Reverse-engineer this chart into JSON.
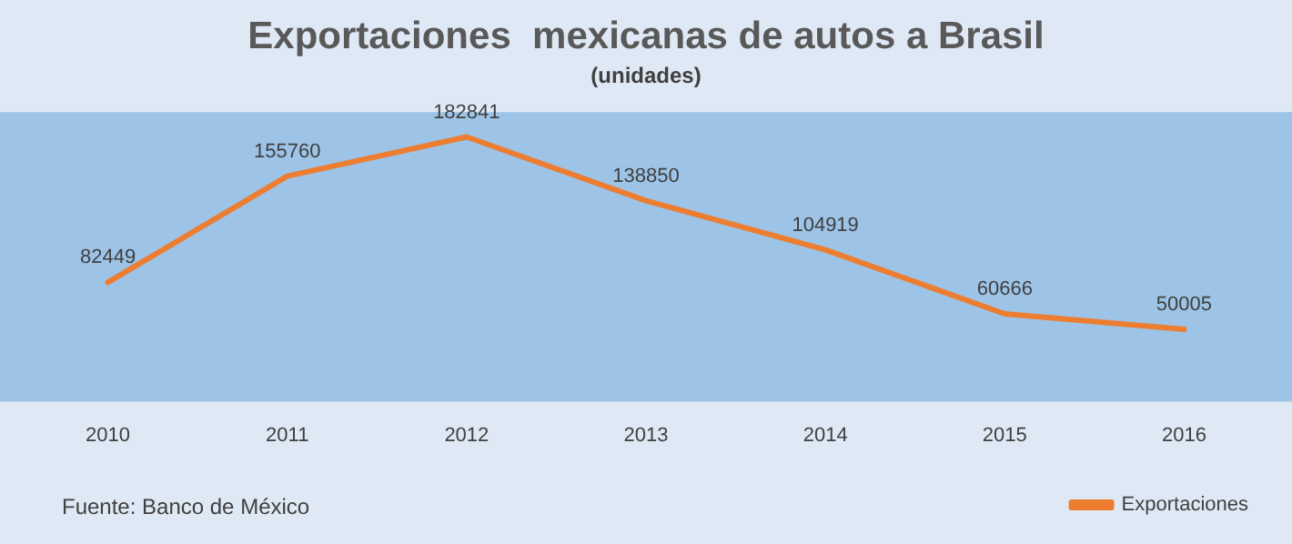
{
  "chart_data": {
    "type": "line",
    "title": "Exportaciones  mexicanas de autos a Brasil",
    "subtitle": "(unidades)",
    "categories": [
      "2010",
      "2011",
      "2012",
      "2013",
      "2014",
      "2015",
      "2016"
    ],
    "series": [
      {
        "name": "Exportaciones",
        "color": "#ed7d31",
        "values": [
          82449,
          155760,
          182841,
          138850,
          104919,
          60666,
          50005
        ]
      }
    ],
    "ylim": [
      0,
      200000
    ],
    "data_labels": true,
    "grid": false,
    "legend": "bottom right",
    "marker": "none",
    "line_style": "solid",
    "tick_labels": "x",
    "annotations": [
      "Fuente: Banco de México"
    ]
  }
}
